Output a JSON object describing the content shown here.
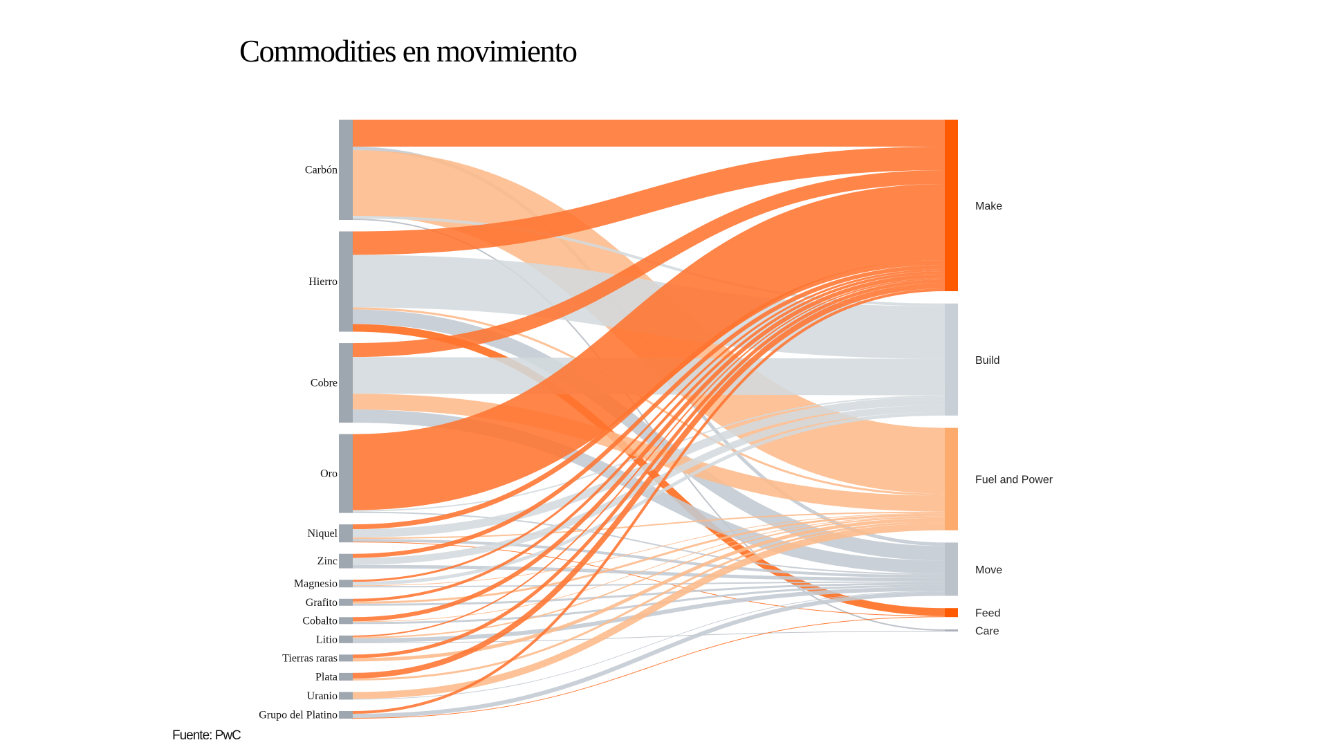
{
  "title": "Commodities en movimiento",
  "source": "Fuente: PwC",
  "colors": {
    "source_node": "#9ea6af",
    "Make": {
      "node": "#ff5a00",
      "link": "#ff7430"
    },
    "Build": {
      "node": "#c9cfd6",
      "link": "#d3d9dd"
    },
    "Fuel and Power": {
      "node": "#fdaa6d",
      "link": "#fdb98a"
    },
    "Move": {
      "node": "#bcc2ca",
      "link": "#c3c9d1"
    },
    "Feed": {
      "node": "#ff5a00",
      "link": "#ff6a1a"
    },
    "Care": {
      "node": "#a9b0b8",
      "link": "#b6bcc4"
    }
  },
  "chart_data": {
    "type": "sankey",
    "title": "Commodities en movimiento",
    "sources": [
      "Carbón",
      "Hierro",
      "Cobre",
      "Oro",
      "Niquel",
      "Zinc",
      "Magnesio",
      "Grafito",
      "Cobalto",
      "Litio",
      "Tierras raras",
      "Plata",
      "Uranio",
      "Grupo del Platino"
    ],
    "targets": [
      "Make",
      "Build",
      "Fuel and Power",
      "Move",
      "Feed",
      "Care"
    ],
    "links": [
      {
        "source": "Carbón",
        "target": "Make",
        "value": 39
      },
      {
        "source": "Carbón",
        "target": "Move",
        "value": 5
      },
      {
        "source": "Carbón",
        "target": "Fuel and Power",
        "value": 95
      },
      {
        "source": "Carbón",
        "target": "Build",
        "value": 4
      },
      {
        "source": "Carbón",
        "target": "Care",
        "value": 2
      },
      {
        "source": "Hierro",
        "target": "Make",
        "value": 34
      },
      {
        "source": "Hierro",
        "target": "Build",
        "value": 76
      },
      {
        "source": "Hierro",
        "target": "Fuel and Power",
        "value": 3
      },
      {
        "source": "Hierro",
        "target": "Move",
        "value": 21
      },
      {
        "source": "Hierro",
        "target": "Feed",
        "value": 11
      },
      {
        "source": "Cobre",
        "target": "Make",
        "value": 20
      },
      {
        "source": "Cobre",
        "target": "Build",
        "value": 53
      },
      {
        "source": "Cobre",
        "target": "Fuel and Power",
        "value": 23
      },
      {
        "source": "Cobre",
        "target": "Move",
        "value": 19
      },
      {
        "source": "Oro",
        "target": "Make",
        "value": 110
      },
      {
        "source": "Oro",
        "target": "Build",
        "value": 2
      },
      {
        "source": "Oro",
        "target": "Move",
        "value": 2
      },
      {
        "source": "Niquel",
        "target": "Make",
        "value": 7
      },
      {
        "source": "Niquel",
        "target": "Build",
        "value": 12
      },
      {
        "source": "Niquel",
        "target": "Fuel and Power",
        "value": 2
      },
      {
        "source": "Niquel",
        "target": "Move",
        "value": 4
      },
      {
        "source": "Niquel",
        "target": "Feed",
        "value": 1
      },
      {
        "source": "Zinc",
        "target": "Make",
        "value": 6
      },
      {
        "source": "Zinc",
        "target": "Build",
        "value": 10
      },
      {
        "source": "Zinc",
        "target": "Move",
        "value": 5
      },
      {
        "source": "Magnesio",
        "target": "Make",
        "value": 3
      },
      {
        "source": "Magnesio",
        "target": "Build",
        "value": 5
      },
      {
        "source": "Magnesio",
        "target": "Fuel and Power",
        "value": 1
      },
      {
        "source": "Magnesio",
        "target": "Move",
        "value": 2
      },
      {
        "source": "Grafito",
        "target": "Make",
        "value": 4
      },
      {
        "source": "Grafito",
        "target": "Fuel and Power",
        "value": 3
      },
      {
        "source": "Grafito",
        "target": "Move",
        "value": 3
      },
      {
        "source": "Cobalto",
        "target": "Make",
        "value": 6
      },
      {
        "source": "Cobalto",
        "target": "Fuel and Power",
        "value": 1
      },
      {
        "source": "Cobalto",
        "target": "Move",
        "value": 3
      },
      {
        "source": "Litio",
        "target": "Make",
        "value": 2
      },
      {
        "source": "Litio",
        "target": "Fuel and Power",
        "value": 2
      },
      {
        "source": "Litio",
        "target": "Move",
        "value": 6
      },
      {
        "source": "Litio",
        "target": "Care",
        "value": 1
      },
      {
        "source": "Tierras raras",
        "target": "Make",
        "value": 5
      },
      {
        "source": "Tierras raras",
        "target": "Fuel and Power",
        "value": 5
      },
      {
        "source": "Plata",
        "target": "Make",
        "value": 8
      },
      {
        "source": "Plata",
        "target": "Fuel and Power",
        "value": 3
      },
      {
        "source": "Uranio",
        "target": "Fuel and Power",
        "value": 10
      },
      {
        "source": "Uranio",
        "target": "Move",
        "value": 1
      },
      {
        "source": "Grupo del Platino",
        "target": "Make",
        "value": 4
      },
      {
        "source": "Grupo del Platino",
        "target": "Move",
        "value": 6
      },
      {
        "source": "Grupo del Platino",
        "target": "Feed",
        "value": 1
      }
    ]
  }
}
